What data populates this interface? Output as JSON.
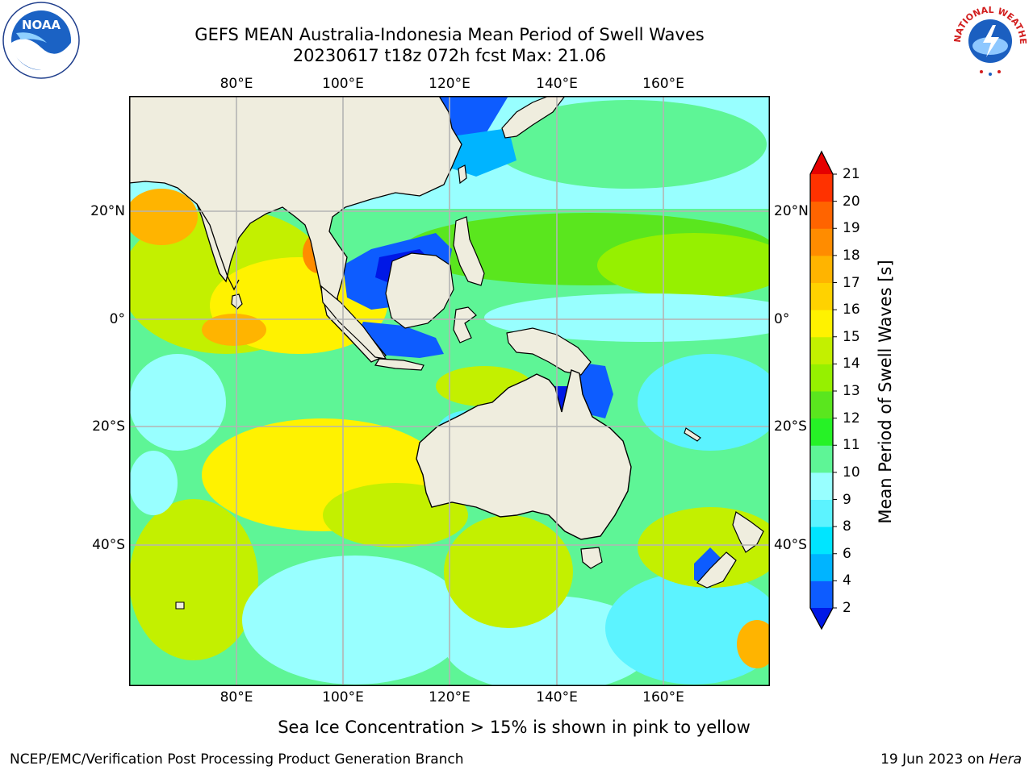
{
  "header": {
    "title_line1": "GEFS MEAN Australia-Indonesia Mean Period of Swell Waves",
    "title_line2": "20230617 t18z 072h fcst   Max: 21.06"
  },
  "map": {
    "longitude_ticks": [
      "80°E",
      "100°E",
      "120°E",
      "140°E",
      "160°E"
    ],
    "latitude_ticks": [
      "20°N",
      "0°",
      "20°S",
      "40°S"
    ],
    "lon_range_deg_e": [
      60,
      180
    ],
    "lat_range_deg": [
      -68,
      42
    ],
    "land_color": "#efedde",
    "grid": true
  },
  "colorbar": {
    "label": "Mean Period of Swell Waves [s]",
    "tick_labels": [
      "2",
      "4",
      "6",
      "8",
      "9",
      "10",
      "11",
      "12",
      "13",
      "14",
      "15",
      "16",
      "17",
      "18",
      "19",
      "20",
      "21"
    ],
    "colors": [
      "#0d5cff",
      "#00b4ff",
      "#00e5ff",
      "#5cf3ff",
      "#98ffff",
      "#5ef596",
      "#26f226",
      "#5ae61e",
      "#96f000",
      "#c3f000",
      "#fff200",
      "#ffd200",
      "#ffb400",
      "#ff8c00",
      "#ff6400",
      "#ff3200"
    ],
    "extend_low_color": "#0018e6",
    "extend_high_color": "#e60000"
  },
  "footer": {
    "note": "Sea Ice Concentration > 15% is shown in pink to yellow",
    "left": "NCEP/EMC/Verification Post Processing Product Generation Branch",
    "right_date": "19 Jun 2023 on ",
    "right_host": "Hera"
  },
  "logos": {
    "noaa_text": "NOAA",
    "nws_text": "NATIONAL WEATHER SERVICE"
  }
}
